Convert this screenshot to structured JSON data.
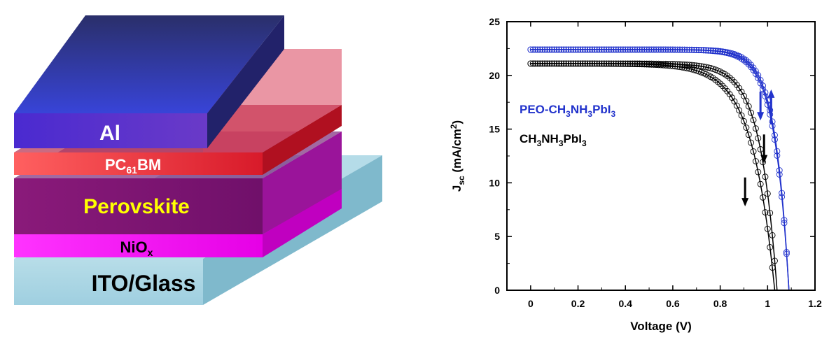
{
  "device": {
    "layers": [
      {
        "id": "ito",
        "name": "ITO/Glass"
      },
      {
        "id": "nio",
        "name": "NiO",
        "sub": "x"
      },
      {
        "id": "perov",
        "name": "Perovskite"
      },
      {
        "id": "pcbm",
        "name": "PC",
        "sub": "61",
        "suffix": "BM"
      },
      {
        "id": "al",
        "name": "Al"
      }
    ]
  },
  "chart_data": {
    "type": "line",
    "xlabel": "Voltage (V)",
    "ylabel_main": "J",
    "ylabel_sub": "sc",
    "ylabel_unit": " (mA/cm",
    "ylabel_sup": "2",
    "ylabel_end": ")",
    "xlim": [
      -0.1,
      1.2
    ],
    "ylim": [
      0,
      25
    ],
    "xticks": [
      0,
      0.2,
      0.4,
      0.6,
      0.8,
      1,
      1.2
    ],
    "xtick_labels": [
      "0",
      "0.2",
      "0.4",
      "0.6",
      "0.8",
      "1",
      "1.2"
    ],
    "yticks": [
      0,
      5,
      10,
      15,
      20,
      25
    ],
    "ytick_labels": [
      "0",
      "5",
      "10",
      "15",
      "20",
      "25"
    ],
    "legend": [
      {
        "parts": [
          "PEO-CH",
          "3",
          "NH",
          "3",
          "PbI",
          "3"
        ],
        "color": "#2233cc"
      },
      {
        "parts": [
          "CH",
          "3",
          "NH",
          "3",
          "PbI",
          "3"
        ],
        "color": "#000000"
      }
    ],
    "series": [
      {
        "color": "#2233cc",
        "curves": [
          {
            "Jsc": 22.4,
            "Voc": 1.09,
            "n": 0.058
          },
          {
            "Jsc": 22.4,
            "Voc": 1.09,
            "n": 0.061
          }
        ]
      },
      {
        "color": "#000000",
        "curves": [
          {
            "Jsc": 21.1,
            "Voc": 1.04,
            "n": 0.072
          },
          {
            "Jsc": 21.1,
            "Voc": 1.03,
            "n": 0.095
          }
        ]
      }
    ],
    "arrows": [
      {
        "color": "#2233cc",
        "x": 1.015,
        "y1": 15.5,
        "y2": 18.5
      },
      {
        "color": "#2233cc",
        "x": 0.97,
        "y1": 18.5,
        "y2": 16.0
      },
      {
        "color": "#000000",
        "x": 0.985,
        "y1": 14.5,
        "y2": 12.0
      },
      {
        "color": "#000000",
        "x": 0.905,
        "y1": 10.5,
        "y2": 8.0
      }
    ]
  }
}
